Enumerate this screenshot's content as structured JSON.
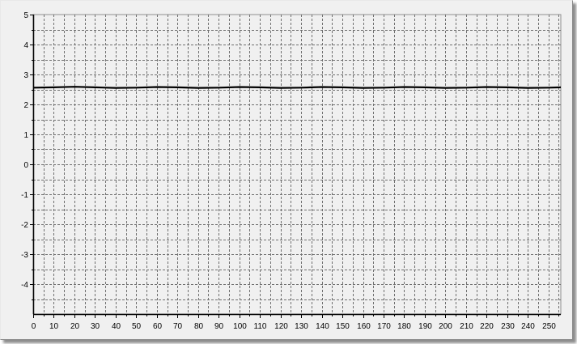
{
  "chart_data": {
    "type": "line",
    "title": "",
    "xlabel": "",
    "ylabel": "",
    "xlim": [
      0,
      256
    ],
    "ylim": [
      -5,
      5
    ],
    "x_ticks": [
      0,
      10,
      20,
      30,
      40,
      50,
      60,
      70,
      80,
      90,
      100,
      110,
      120,
      130,
      140,
      150,
      160,
      170,
      180,
      190,
      200,
      210,
      220,
      230,
      240,
      250
    ],
    "y_ticks": [
      5,
      4,
      3,
      2,
      1,
      0,
      -1,
      -2,
      -3,
      -4
    ],
    "x_tick_labels": [
      "0",
      "10",
      "20",
      "30",
      "40",
      "50",
      "60",
      "70",
      "80",
      "90",
      "100",
      "110",
      "120",
      "130",
      "140",
      "150",
      "160",
      "170",
      "180",
      "190",
      "200",
      "210",
      "220",
      "230",
      "240",
      "250"
    ],
    "y_tick_labels": [
      "5",
      "4",
      "3",
      "2",
      "1",
      "0",
      "-1",
      "-2",
      "-3",
      "-4"
    ],
    "grid": true,
    "grid_style": "dashed",
    "legend": "none",
    "series": [
      {
        "color": "#000000",
        "x": [
          0,
          10,
          20,
          30,
          40,
          50,
          60,
          70,
          80,
          90,
          100,
          110,
          120,
          130,
          140,
          150,
          160,
          170,
          180,
          190,
          200,
          210,
          220,
          230,
          240,
          250,
          256
        ],
        "y": [
          2.56,
          2.57,
          2.59,
          2.57,
          2.55,
          2.56,
          2.58,
          2.57,
          2.55,
          2.56,
          2.58,
          2.57,
          2.55,
          2.56,
          2.58,
          2.57,
          2.55,
          2.56,
          2.58,
          2.57,
          2.55,
          2.56,
          2.58,
          2.57,
          2.55,
          2.56,
          2.57
        ]
      }
    ]
  }
}
